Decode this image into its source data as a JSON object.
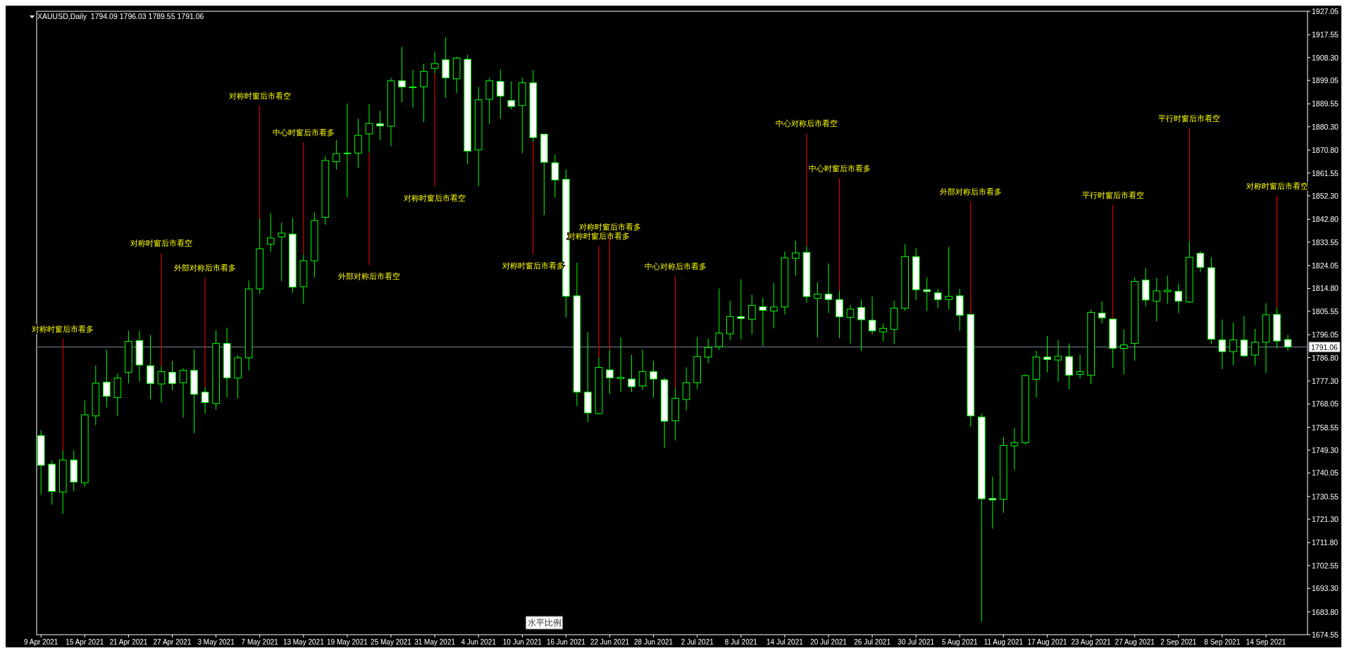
{
  "chart_data": {
    "type": "candlestick",
    "title": "XAUUSD,Daily  1794.09 1796.03 1789.55 1791.06",
    "color": "#00ff00",
    "categories": [
      "9 Apr 2021",
      null,
      null,
      null,
      "15 Apr 2021",
      null,
      null,
      null,
      "21 Apr 2021",
      null,
      null,
      null,
      "27 Apr 2021",
      null,
      null,
      null,
      "3 May 2021",
      null,
      null,
      null,
      "7 May 2021",
      null,
      null,
      null,
      "13 May 2021",
      null,
      null,
      null,
      "19 May 2021",
      null,
      null,
      null,
      "25 May 2021",
      null,
      null,
      null,
      "31 May 2021",
      null,
      null,
      null,
      "4 Jun 2021",
      null,
      null,
      null,
      "10 Jun 2021",
      null,
      null,
      null,
      "16 Jun 2021",
      null,
      null,
      null,
      "22 Jun 2021",
      null,
      null,
      null,
      "28 Jun 2021",
      null,
      null,
      null,
      "2 Jul 2021",
      null,
      null,
      null,
      "8 Jul 2021",
      null,
      null,
      null,
      "14 Jul 2021",
      null,
      null,
      null,
      "20 Jul 2021",
      null,
      null,
      null,
      "26 Jul 2021",
      null,
      null,
      null,
      "30 Jul 2021",
      null,
      null,
      null,
      "5 Aug 2021",
      null,
      null,
      null,
      "11 Aug 2021",
      null,
      null,
      null,
      "17 Aug 2021",
      null,
      null,
      null,
      "23 Aug 2021",
      null,
      null,
      null,
      "27 Aug 2021",
      null,
      null,
      null,
      "2 Sep 2021",
      null,
      null,
      null,
      "8 Sep 2021",
      null,
      null,
      null,
      "14 Sep 2021",
      null,
      null
    ],
    "ohlc": [
      [
        1755.2,
        1757.4,
        1731.4,
        1743.1
      ],
      [
        1743.6,
        1745.1,
        1727.2,
        1732.6
      ],
      [
        1732.3,
        1749.0,
        1723.5,
        1745.3
      ],
      [
        1745.3,
        1749.3,
        1732.6,
        1736.4
      ],
      [
        1736.1,
        1769.4,
        1734.4,
        1763.6
      ],
      [
        1763.2,
        1783.6,
        1759.4,
        1776.4
      ],
      [
        1776.8,
        1789.9,
        1766.6,
        1771.1
      ],
      [
        1770.6,
        1780.3,
        1763.2,
        1778.5
      ],
      [
        1780.8,
        1797.6,
        1776.3,
        1793.4
      ],
      [
        1793.7,
        1797.7,
        1777.1,
        1783.8
      ],
      [
        1783.5,
        1795.9,
        1769.9,
        1776.3
      ],
      [
        1776.1,
        1783.3,
        1768.6,
        1781.1
      ],
      [
        1780.8,
        1785.5,
        1773.6,
        1776.3
      ],
      [
        1776.6,
        1782.5,
        1762.4,
        1781.6
      ],
      [
        1781.6,
        1790.0,
        1756.2,
        1771.9
      ],
      [
        1772.8,
        1774.9,
        1764.1,
        1768.6
      ],
      [
        1768.2,
        1797.9,
        1765.7,
        1792.5
      ],
      [
        1792.5,
        1798.9,
        1770.7,
        1778.6
      ],
      [
        1778.5,
        1787.8,
        1770.3,
        1786.7
      ],
      [
        1786.7,
        1818.0,
        1781.6,
        1814.6
      ],
      [
        1814.6,
        1843.1,
        1812.6,
        1830.9
      ],
      [
        1832.7,
        1845.3,
        1829.7,
        1835.2
      ],
      [
        1835.7,
        1841.6,
        1817.7,
        1837.2
      ],
      [
        1836.8,
        1843.3,
        1813.0,
        1815.3
      ],
      [
        1815.5,
        1828.5,
        1808.6,
        1826.0
      ],
      [
        1826.0,
        1845.6,
        1819.3,
        1842.3
      ],
      [
        1843.6,
        1868.4,
        1840.6,
        1866.6
      ],
      [
        1866.1,
        1874.9,
        1862.9,
        1869.4
      ],
      [
        1869.4,
        1889.7,
        1851.8,
        1869.6
      ],
      [
        1869.6,
        1883.5,
        1863.7,
        1876.8
      ],
      [
        1877.4,
        1889.4,
        1869.9,
        1881.6
      ],
      [
        1881.5,
        1886.7,
        1874.9,
        1880.6
      ],
      [
        1880.5,
        1900.1,
        1872.4,
        1898.9
      ],
      [
        1898.9,
        1912.6,
        1890.2,
        1896.4
      ],
      [
        1896.2,
        1903.4,
        1888.0,
        1896.4
      ],
      [
        1896.5,
        1905.8,
        1882.1,
        1902.7
      ],
      [
        1903.9,
        1910.6,
        1901.9,
        1905.9
      ],
      [
        1907.4,
        1916.5,
        1892.0,
        1900.1
      ],
      [
        1899.7,
        1908.6,
        1893.9,
        1908.1
      ],
      [
        1907.6,
        1909.4,
        1865.1,
        1870.4
      ],
      [
        1870.9,
        1896.4,
        1856.2,
        1891.2
      ],
      [
        1891.4,
        1900.1,
        1881.3,
        1898.9
      ],
      [
        1898.6,
        1903.6,
        1883.5,
        1892.7
      ],
      [
        1890.9,
        1898.7,
        1887.3,
        1888.5
      ],
      [
        1888.9,
        1900.1,
        1869.6,
        1898.1
      ],
      [
        1898.1,
        1903.1,
        1874.3,
        1875.9
      ],
      [
        1877.3,
        1877.3,
        1844.5,
        1865.9
      ],
      [
        1865.7,
        1869.1,
        1851.5,
        1858.7
      ],
      [
        1859.0,
        1862.9,
        1803.1,
        1811.6
      ],
      [
        1811.8,
        1825.2,
        1767.1,
        1772.8
      ],
      [
        1772.8,
        1797.0,
        1760.7,
        1764.4
      ],
      [
        1764.1,
        1786.7,
        1763.7,
        1782.8
      ],
      [
        1781.8,
        1790.0,
        1772.1,
        1778.6
      ],
      [
        1778.3,
        1795.0,
        1772.9,
        1778.8
      ],
      [
        1778.1,
        1787.8,
        1772.8,
        1775.0
      ],
      [
        1775.3,
        1790.0,
        1773.8,
        1781.1
      ],
      [
        1781.1,
        1785.5,
        1770.6,
        1778.1
      ],
      [
        1777.8,
        1778.6,
        1750.3,
        1761.0
      ],
      [
        1761.2,
        1774.4,
        1753.2,
        1770.3
      ],
      [
        1769.8,
        1782.8,
        1765.4,
        1776.6
      ],
      [
        1776.6,
        1795.0,
        1774.1,
        1787.2
      ],
      [
        1787.0,
        1794.5,
        1784.5,
        1790.9
      ],
      [
        1791.2,
        1814.8,
        1789.9,
        1796.7
      ],
      [
        1796.4,
        1809.8,
        1793.9,
        1803.4
      ],
      [
        1803.4,
        1818.5,
        1794.2,
        1802.6
      ],
      [
        1802.3,
        1812.3,
        1796.2,
        1807.9
      ],
      [
        1807.4,
        1811.0,
        1791.5,
        1805.9
      ],
      [
        1805.6,
        1817.1,
        1798.6,
        1807.3
      ],
      [
        1807.3,
        1829.7,
        1804.3,
        1827.2
      ],
      [
        1827.0,
        1834.1,
        1820.0,
        1829.2
      ],
      [
        1829.4,
        1831.9,
        1809.0,
        1811.5
      ],
      [
        1810.8,
        1817.3,
        1794.9,
        1812.5
      ],
      [
        1812.5,
        1824.9,
        1804.8,
        1810.3
      ],
      [
        1810.3,
        1813.8,
        1794.7,
        1803.3
      ],
      [
        1803.1,
        1808.1,
        1792.5,
        1806.4
      ],
      [
        1807.1,
        1810.3,
        1789.5,
        1802.1
      ],
      [
        1801.9,
        1811.5,
        1796.2,
        1797.6
      ],
      [
        1797.2,
        1800.6,
        1793.4,
        1798.6
      ],
      [
        1798.2,
        1809.8,
        1792.2,
        1806.8
      ],
      [
        1806.8,
        1832.7,
        1805.6,
        1827.7
      ],
      [
        1827.7,
        1831.1,
        1810.1,
        1814.3
      ],
      [
        1814.3,
        1819.3,
        1805.6,
        1813.5
      ],
      [
        1813.0,
        1814.6,
        1806.8,
        1810.3
      ],
      [
        1810.3,
        1831.6,
        1806.3,
        1811.6
      ],
      [
        1811.8,
        1814.6,
        1797.6,
        1803.9
      ],
      [
        1804.3,
        1804.3,
        1758.7,
        1763.2
      ],
      [
        1762.7,
        1764.1,
        1679.8,
        1729.6
      ],
      [
        1729.7,
        1738.5,
        1717.5,
        1729.1
      ],
      [
        1729.4,
        1754.5,
        1723.9,
        1751.2
      ],
      [
        1751.0,
        1758.2,
        1741.3,
        1752.3
      ],
      [
        1752.3,
        1780.0,
        1751.5,
        1779.5
      ],
      [
        1778.0,
        1789.5,
        1770.7,
        1787.0
      ],
      [
        1787.0,
        1795.5,
        1780.8,
        1786.0
      ],
      [
        1785.8,
        1793.9,
        1776.9,
        1787.3
      ],
      [
        1787.2,
        1792.5,
        1774.1,
        1779.6
      ],
      [
        1780.0,
        1788.0,
        1778.3,
        1781.1
      ],
      [
        1779.6,
        1806.3,
        1776.1,
        1805.1
      ],
      [
        1804.8,
        1809.6,
        1800.6,
        1802.9
      ],
      [
        1802.4,
        1802.4,
        1782.5,
        1790.5
      ],
      [
        1790.5,
        1798.1,
        1780.0,
        1791.9
      ],
      [
        1792.5,
        1819.3,
        1785.5,
        1817.6
      ],
      [
        1818.2,
        1823.0,
        1807.6,
        1810.1
      ],
      [
        1809.6,
        1819.0,
        1801.4,
        1813.8
      ],
      [
        1813.5,
        1820.0,
        1808.4,
        1814.1
      ],
      [
        1813.6,
        1816.8,
        1804.8,
        1809.6
      ],
      [
        1809.3,
        1833.9,
        1808.9,
        1827.4
      ],
      [
        1829.0,
        1829.9,
        1821.3,
        1823.3
      ],
      [
        1823.2,
        1827.4,
        1792.2,
        1794.2
      ],
      [
        1794.0,
        1802.2,
        1782.1,
        1789.2
      ],
      [
        1789.2,
        1800.9,
        1783.7,
        1794.0
      ],
      [
        1793.9,
        1803.7,
        1787.0,
        1787.5
      ],
      [
        1787.8,
        1798.4,
        1783.7,
        1793.0
      ],
      [
        1793.0,
        1808.8,
        1780.5,
        1804.1
      ],
      [
        1804.3,
        1806.8,
        1790.5,
        1793.5
      ],
      [
        1794.09,
        1796.03,
        1789.55,
        1791.06
      ]
    ],
    "ylim": [
      1674.55,
      1927.05
    ],
    "yticks": [
      {
        "value": 1927.05,
        "label": "1927.05"
      },
      {
        "value": 1917.55,
        "label": "1917.55"
      },
      {
        "value": 1908.3,
        "label": "1908.30"
      },
      {
        "value": 1899.05,
        "label": "1899.05"
      },
      {
        "value": 1889.55,
        "label": "1889.55"
      },
      {
        "value": 1880.3,
        "label": "1880.30"
      },
      {
        "value": 1870.8,
        "label": "1870.80"
      },
      {
        "value": 1861.55,
        "label": "1861.55"
      },
      {
        "value": 1852.3,
        "label": "1852.30"
      },
      {
        "value": 1842.8,
        "label": "1842.80"
      },
      {
        "value": 1833.55,
        "label": "1833.55"
      },
      {
        "value": 1824.05,
        "label": "1824.05"
      },
      {
        "value": 1814.8,
        "label": "1814.80"
      },
      {
        "value": 1805.55,
        "label": "1805.55"
      },
      {
        "value": 1796.05,
        "label": "1796.05"
      },
      {
        "value": 1786.8,
        "label": "1786.80"
      },
      {
        "value": 1777.3,
        "label": "1777.30"
      },
      {
        "value": 1768.05,
        "label": "1768.05"
      },
      {
        "value": 1758.55,
        "label": "1758.55"
      },
      {
        "value": 1749.3,
        "label": "1749.30"
      },
      {
        "value": 1740.05,
        "label": "1740.05"
      },
      {
        "value": 1730.55,
        "label": "1730.55"
      },
      {
        "value": 1721.3,
        "label": "1721.30"
      },
      {
        "value": 1711.8,
        "label": "1711.80"
      },
      {
        "value": 1702.55,
        "label": "1702.55"
      },
      {
        "value": 1693.3,
        "label": "1693.30"
      },
      {
        "value": 1683.8,
        "label": "1683.80"
      },
      {
        "value": 1674.55,
        "label": "1674.55"
      }
    ],
    "ref_lines": [
      {
        "axis": "y",
        "value": 1791.06,
        "label": "1791.06",
        "color": "#778899"
      }
    ],
    "annotations": [
      {
        "text": "对称时窗后市看多",
        "y": 1749.0
      },
      {
        "text": "对称时窗后市看空",
        "y": 1783.3
      },
      {
        "text": "外部对称后市看多",
        "y": 1774.9
      },
      {
        "text": "对称时窗后市看空",
        "y": 1843.1
      },
      {
        "text": "中心时窗后市看多",
        "y": 1828.5
      },
      {
        "text": "外部对称后市看空",
        "y": 1869.9
      },
      {
        "text": "对称时窗后市看空",
        "y": 1901.9
      },
      {
        "text": "对称时窗后市看多",
        "y": 1874.3
      },
      {
        "text": "对称时窗后市看多",
        "y": 1786.7
      },
      {
        "text": "对称时窗后市看多",
        "y": 1790.0
      },
      {
        "text": "中心对称后市看多",
        "y": 1774.4
      },
      {
        "text": "中心对称后市看空",
        "y": 1831.9
      },
      {
        "text": "中心时窗后市看多",
        "y": 1813.8
      },
      {
        "text": "外部对称后市看多",
        "y": 1804.3
      },
      {
        "text": "平行时窗后市看空",
        "y": 1802.4
      },
      {
        "text": "平行时窗后市看空",
        "y": 1833.9
      },
      {
        "text": "对称时窗后市看空",
        "y": 1806.8
      },
      "水平比例"
    ]
  }
}
